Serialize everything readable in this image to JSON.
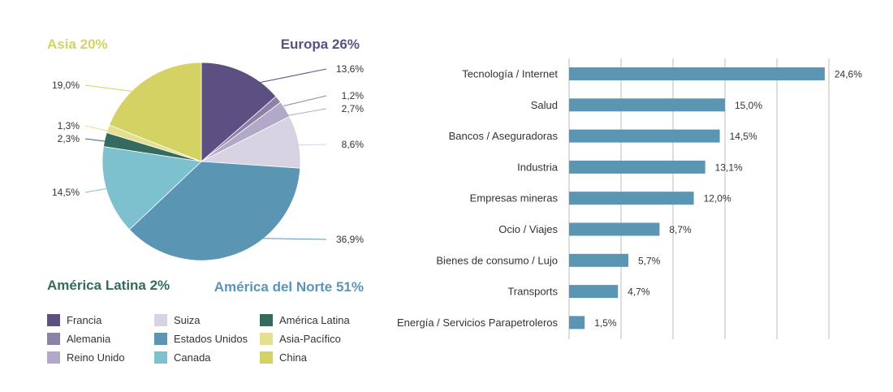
{
  "chart_data": [
    {
      "type": "pie",
      "region_labels": [
        {
          "text": "Asia 20%",
          "color": "#d4d262"
        },
        {
          "text": "Europa 26%",
          "color": "#5c4f82"
        },
        {
          "text": "América Latina 2%",
          "color": "#356a5e"
        },
        {
          "text": "América del Norte 51%",
          "color": "#5b95b4"
        }
      ],
      "slices": [
        {
          "name": "Francia",
          "value": 13.6,
          "label": "13,6%",
          "color": "#5c4f82"
        },
        {
          "name": "Alemania",
          "value": 1.2,
          "label": "1,2%",
          "color": "#8c81a6"
        },
        {
          "name": "Reino Unido",
          "value": 2.7,
          "label": "2,7%",
          "color": "#b1a9c7"
        },
        {
          "name": "Suiza",
          "value": 8.6,
          "label": "8,6%",
          "color": "#d7d3e3"
        },
        {
          "name": "Estados Unidos",
          "value": 36.9,
          "label": "36,9%",
          "color": "#5b95b4"
        },
        {
          "name": "Canada",
          "value": 14.5,
          "label": "14,5%",
          "color": "#7cc1cd"
        },
        {
          "name": "América Latina",
          "value": 2.3,
          "label": "2,3%",
          "color": "#356a5e"
        },
        {
          "name": "Asia-Pacífico",
          "value": 1.3,
          "label": "1,3%",
          "color": "#e3e190"
        },
        {
          "name": "China",
          "value": 19.0,
          "label": "19,0%",
          "color": "#d4d262"
        }
      ],
      "legend": [
        "Francia",
        "Suiza",
        "América Latina",
        "Alemania",
        "Estados Unidos",
        "Asia-Pacífico",
        "Reino Unido",
        "Canada",
        "China"
      ]
    },
    {
      "type": "bar",
      "orientation": "horizontal",
      "color": "#5b95b4",
      "categories": [
        "Tecnología / Internet",
        "Salud",
        "Bancos / Aseguradoras",
        "Industria",
        "Empresas mineras",
        "Ocio / Viajes",
        "Bienes de consumo / Lujo",
        "Transports",
        "Energía / Servicios Parapetroleros"
      ],
      "values": [
        24.6,
        15.0,
        14.5,
        13.1,
        12.0,
        8.7,
        5.7,
        4.7,
        1.5
      ],
      "value_labels": [
        "24,6%",
        "15,0%",
        "14,5%",
        "13,1%",
        "12,0%",
        "8,7%",
        "5,7%",
        "4,7%",
        "1,5%"
      ],
      "xlim": [
        0,
        25
      ],
      "grid": true
    }
  ]
}
